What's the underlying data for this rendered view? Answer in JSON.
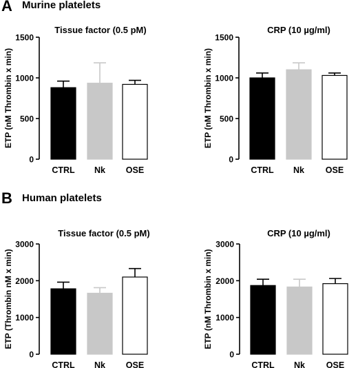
{
  "panels": [
    {
      "letter": "A",
      "title": "Murine platelets"
    },
    {
      "letter": "B",
      "title": "Human platelets"
    }
  ],
  "colors": {
    "CTRL": "#000000",
    "Nk": "#c8c8c8",
    "OSE": "#ffffff",
    "axis": "#000000"
  },
  "chart_data": [
    {
      "type": "bar",
      "panel": "A",
      "title": "Tissue factor (0.5 pM)",
      "ylabel": "ETP (nM Thrombin  x min)",
      "categories": [
        "CTRL",
        "Nk",
        "OSE"
      ],
      "values": [
        880,
        935,
        920
      ],
      "error": [
        80,
        250,
        50
      ],
      "ylim": [
        0,
        1500
      ],
      "yticks": [
        0,
        500,
        1000,
        1500
      ]
    },
    {
      "type": "bar",
      "panel": "A",
      "title": "CRP (10 µg/ml)",
      "ylabel": "ETP (nM Thrombin  x min)",
      "categories": [
        "CTRL",
        "Nk",
        "OSE"
      ],
      "values": [
        1000,
        1100,
        1030
      ],
      "error": [
        60,
        85,
        30
      ],
      "ylim": [
        0,
        1500
      ],
      "yticks": [
        0,
        500,
        1000,
        1500
      ]
    },
    {
      "type": "bar",
      "panel": "B",
      "title": "Tissue factor (0.5 pM)",
      "ylabel": "ETP (Thrombin nM x min)",
      "categories": [
        "CTRL",
        "Nk",
        "OSE"
      ],
      "values": [
        1780,
        1660,
        2100
      ],
      "error": [
        180,
        150,
        230
      ],
      "ylim": [
        0,
        3000
      ],
      "yticks": [
        0,
        1000,
        2000,
        3000
      ]
    },
    {
      "type": "bar",
      "panel": "B",
      "title": "CRP (10 µg/ml)",
      "ylabel": "ETP (nM Thrombin  x min)",
      "categories": [
        "CTRL",
        "Nk",
        "OSE"
      ],
      "values": [
        1870,
        1830,
        1920
      ],
      "error": [
        170,
        210,
        140
      ],
      "ylim": [
        0,
        3000
      ],
      "yticks": [
        0,
        1000,
        2000,
        3000
      ]
    }
  ]
}
